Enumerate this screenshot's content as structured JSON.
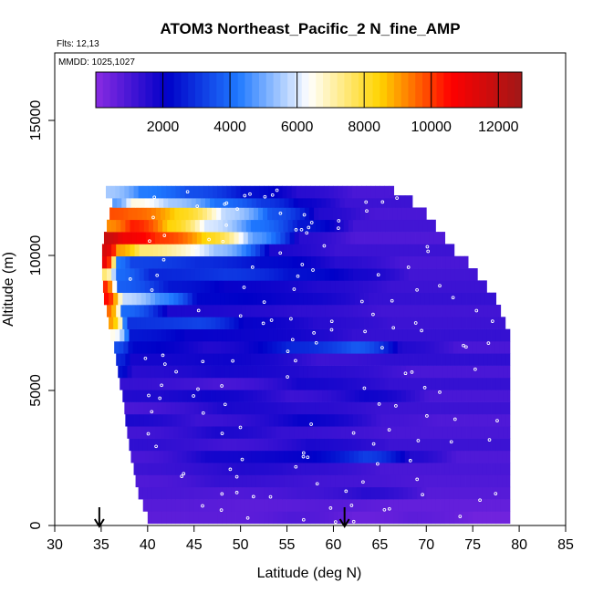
{
  "chart_data": {
    "type": "heatmap",
    "title": "ATOM3 Northeast_Pacific_2 N_fine_AMP",
    "annotations": {
      "flights": "Flts: 12,13",
      "dates": "MMDD: 1025,1027"
    },
    "xlabel": "Latitude (deg N)",
    "ylabel": "Altitude (m)",
    "xlim": [
      30,
      85
    ],
    "ylim": [
      0,
      17500
    ],
    "x_ticks": [
      30,
      35,
      40,
      45,
      50,
      55,
      60,
      65,
      70,
      75,
      80,
      85
    ],
    "y_ticks": [
      0,
      5000,
      10000,
      15000
    ],
    "x_tick_labels": [
      "30",
      "35",
      "40",
      "45",
      "50",
      "55",
      "60",
      "65",
      "70",
      "75",
      "80",
      "85"
    ],
    "y_tick_labels": [
      "0",
      "5000",
      "10000",
      "15000"
    ],
    "colorbar": {
      "range": [
        0,
        12700
      ],
      "ticks": [
        2000,
        4000,
        6000,
        8000,
        10000,
        12000
      ],
      "tick_labels": [
        "2000",
        "4000",
        "6000",
        "8000",
        "10000",
        "12000"
      ],
      "colors": [
        "#8a2be2",
        "#0000c8",
        "#1e78ff",
        "#ffffff",
        "#ffd400",
        "#ff0000",
        "#a01818"
      ]
    },
    "arrows_latitude": [
      34.8,
      61.2
    ],
    "grid": false,
    "altitude_bins": [
      {
        "alt": 300,
        "lat_min": 40,
        "lat_max": 79,
        "segments": [
          [
            40,
            700
          ],
          [
            49,
            700
          ],
          [
            55,
            900
          ],
          [
            62,
            500
          ],
          [
            68,
            700
          ],
          [
            75,
            400
          ]
        ]
      },
      {
        "alt": 750,
        "lat_min": 39.5,
        "lat_max": 79,
        "segments": [
          [
            39.5,
            800
          ],
          [
            50,
            700
          ],
          [
            58,
            800
          ],
          [
            66,
            600
          ]
        ]
      },
      {
        "alt": 1200,
        "lat_min": 39,
        "lat_max": 79,
        "segments": [
          [
            39,
            1000
          ],
          [
            48,
            900
          ],
          [
            56,
            1100
          ],
          [
            63,
            1500
          ],
          [
            70,
            800
          ]
        ]
      },
      {
        "alt": 1650,
        "lat_min": 38.7,
        "lat_max": 79,
        "segments": [
          [
            38.7,
            900
          ],
          [
            47,
            1300
          ],
          [
            58,
            1100
          ],
          [
            70,
            900
          ]
        ]
      },
      {
        "alt": 2100,
        "lat_min": 38.5,
        "lat_max": 79,
        "segments": [
          [
            38.5,
            1200
          ],
          [
            50,
            1600
          ],
          [
            56,
            1400
          ],
          [
            65,
            1000
          ]
        ]
      },
      {
        "alt": 2550,
        "lat_min": 38.2,
        "lat_max": 79,
        "segments": [
          [
            38.2,
            1000
          ],
          [
            46,
            1800
          ],
          [
            55,
            2000
          ],
          [
            63,
            3200
          ],
          [
            68,
            1600
          ],
          [
            73,
            900
          ]
        ]
      },
      {
        "alt": 3000,
        "lat_min": 38,
        "lat_max": 79,
        "segments": [
          [
            38,
            1400
          ],
          [
            48,
            1100
          ],
          [
            57,
            1700
          ],
          [
            66,
            1200
          ]
        ]
      },
      {
        "alt": 3450,
        "lat_min": 37.8,
        "lat_max": 79,
        "segments": [
          [
            37.8,
            1100
          ],
          [
            47,
            1700
          ],
          [
            54,
            1300
          ],
          [
            66,
            1000
          ]
        ]
      },
      {
        "alt": 3900,
        "lat_min": 37.6,
        "lat_max": 79,
        "segments": [
          [
            37.6,
            1700
          ],
          [
            45,
            1200
          ],
          [
            56,
            2000
          ],
          [
            65,
            1100
          ],
          [
            71,
            900
          ]
        ]
      },
      {
        "alt": 4350,
        "lat_min": 37.5,
        "lat_max": 79,
        "segments": [
          [
            37.5,
            1000
          ],
          [
            48,
            1700
          ],
          [
            56,
            1500
          ],
          [
            65,
            1200
          ]
        ]
      },
      {
        "alt": 4800,
        "lat_min": 37.3,
        "lat_max": 79,
        "segments": [
          [
            37.3,
            1600
          ],
          [
            46,
            1900
          ],
          [
            55,
            1200
          ],
          [
            63,
            1900
          ],
          [
            70,
            1000
          ]
        ]
      },
      {
        "alt": 5250,
        "lat_min": 37,
        "lat_max": 79,
        "segments": [
          [
            37,
            1300
          ],
          [
            47,
            1000
          ],
          [
            56,
            1800
          ],
          [
            66,
            1300
          ]
        ]
      },
      {
        "alt": 5700,
        "lat_min": 36.8,
        "lat_max": 79,
        "segments": [
          [
            36.8,
            2400
          ],
          [
            38,
            1500
          ],
          [
            47,
            1800
          ],
          [
            58,
            1500
          ],
          [
            68,
            1000
          ]
        ]
      },
      {
        "alt": 6150,
        "lat_min": 36.6,
        "lat_max": 79,
        "segments": [
          [
            36.6,
            2800
          ],
          [
            38,
            1800
          ],
          [
            48,
            1900
          ],
          [
            58,
            1200
          ],
          [
            66,
            1400
          ]
        ]
      },
      {
        "alt": 6600,
        "lat_min": 36.4,
        "lat_max": 79,
        "segments": [
          [
            36.4,
            3500
          ],
          [
            38,
            2200
          ],
          [
            46,
            1600
          ],
          [
            55,
            2800
          ],
          [
            62,
            3700
          ],
          [
            67,
            1600
          ],
          [
            73,
            1000
          ]
        ]
      },
      {
        "alt": 7050,
        "lat_min": 36,
        "lat_max": 79,
        "segments": [
          [
            36,
            6500
          ],
          [
            38,
            2500
          ],
          [
            44,
            2000
          ],
          [
            52,
            1900
          ],
          [
            62,
            1300
          ]
        ]
      },
      {
        "alt": 7500,
        "lat_min": 35.8,
        "lat_max": 78.5,
        "segments": [
          [
            35.8,
            9000
          ],
          [
            37.5,
            3000
          ],
          [
            45,
            3300
          ],
          [
            50,
            2000
          ],
          [
            58,
            1500
          ],
          [
            66,
            1200
          ]
        ]
      },
      {
        "alt": 7950,
        "lat_min": 35.6,
        "lat_max": 78,
        "segments": [
          [
            35.6,
            9500
          ],
          [
            37,
            4000
          ],
          [
            42,
            1700
          ],
          [
            56,
            1400
          ],
          [
            65,
            1100
          ]
        ]
      },
      {
        "alt": 8400,
        "lat_min": 35.3,
        "lat_max": 77.5,
        "segments": [
          [
            35.3,
            10500
          ],
          [
            37,
            5800
          ],
          [
            41,
            4500
          ],
          [
            45,
            2200
          ],
          [
            55,
            1900
          ],
          [
            64,
            1300
          ]
        ]
      },
      {
        "alt": 8850,
        "lat_min": 35.2,
        "lat_max": 76.5,
        "segments": [
          [
            35.2,
            10200
          ],
          [
            36.5,
            3800
          ],
          [
            42,
            2500
          ],
          [
            48,
            2000
          ],
          [
            58,
            1600
          ],
          [
            66,
            1200
          ]
        ]
      },
      {
        "alt": 9300,
        "lat_min": 35.1,
        "lat_max": 75.5,
        "segments": [
          [
            35.1,
            7500
          ],
          [
            36.5,
            4000
          ],
          [
            40,
            2800
          ],
          [
            48,
            3100
          ],
          [
            55,
            2400
          ],
          [
            62,
            1800
          ],
          [
            68,
            1100
          ]
        ]
      },
      {
        "alt": 9750,
        "lat_min": 35.1,
        "lat_max": 74.5,
        "segments": [
          [
            35.1,
            11000
          ],
          [
            36.5,
            4200
          ],
          [
            38,
            3300
          ],
          [
            45,
            2900
          ],
          [
            52,
            2300
          ],
          [
            60,
            1500
          ],
          [
            67,
            1000
          ]
        ]
      },
      {
        "alt": 10200,
        "lat_min": 35.1,
        "lat_max": 73,
        "segments": [
          [
            35.1,
            11500
          ],
          [
            36.5,
            9000
          ],
          [
            39,
            7500
          ],
          [
            47,
            5400
          ],
          [
            53,
            1700
          ],
          [
            60,
            1200
          ]
        ]
      },
      {
        "alt": 10650,
        "lat_min": 35.3,
        "lat_max": 72,
        "segments": [
          [
            35.3,
            11800
          ],
          [
            37,
            10900
          ],
          [
            41,
            10000
          ],
          [
            46,
            8300
          ],
          [
            51,
            4800
          ],
          [
            56,
            1500
          ],
          [
            62,
            900
          ]
        ]
      },
      {
        "alt": 11100,
        "lat_min": 35.6,
        "lat_max": 71,
        "segments": [
          [
            35.6,
            9200
          ],
          [
            38,
            10300
          ],
          [
            42,
            8400
          ],
          [
            46,
            6000
          ],
          [
            51,
            4200
          ],
          [
            56,
            2500
          ],
          [
            62,
            1100
          ]
        ]
      },
      {
        "alt": 11550,
        "lat_min": 35.9,
        "lat_max": 70,
        "segments": [
          [
            35.9,
            9800
          ],
          [
            38,
            9600
          ],
          [
            43,
            8300
          ],
          [
            48,
            5700
          ],
          [
            53,
            3600
          ],
          [
            58,
            1600
          ],
          [
            64,
            1000
          ]
        ]
      },
      {
        "alt": 12000,
        "lat_min": 36.2,
        "lat_max": 68.5,
        "segments": [
          [
            36.2,
            4800
          ],
          [
            38,
            6600
          ],
          [
            42,
            5500
          ],
          [
            47,
            4100
          ],
          [
            52,
            3100
          ],
          [
            56,
            2000
          ],
          [
            61,
            1200
          ]
        ]
      },
      {
        "alt": 12350,
        "lat_min": 35.5,
        "lat_max": 66.5,
        "segments": [
          [
            35.5,
            5500
          ],
          [
            39,
            4300
          ],
          [
            44,
            3500
          ],
          [
            50,
            2400
          ],
          [
            56,
            1500
          ],
          [
            62,
            1000
          ]
        ]
      }
    ]
  }
}
